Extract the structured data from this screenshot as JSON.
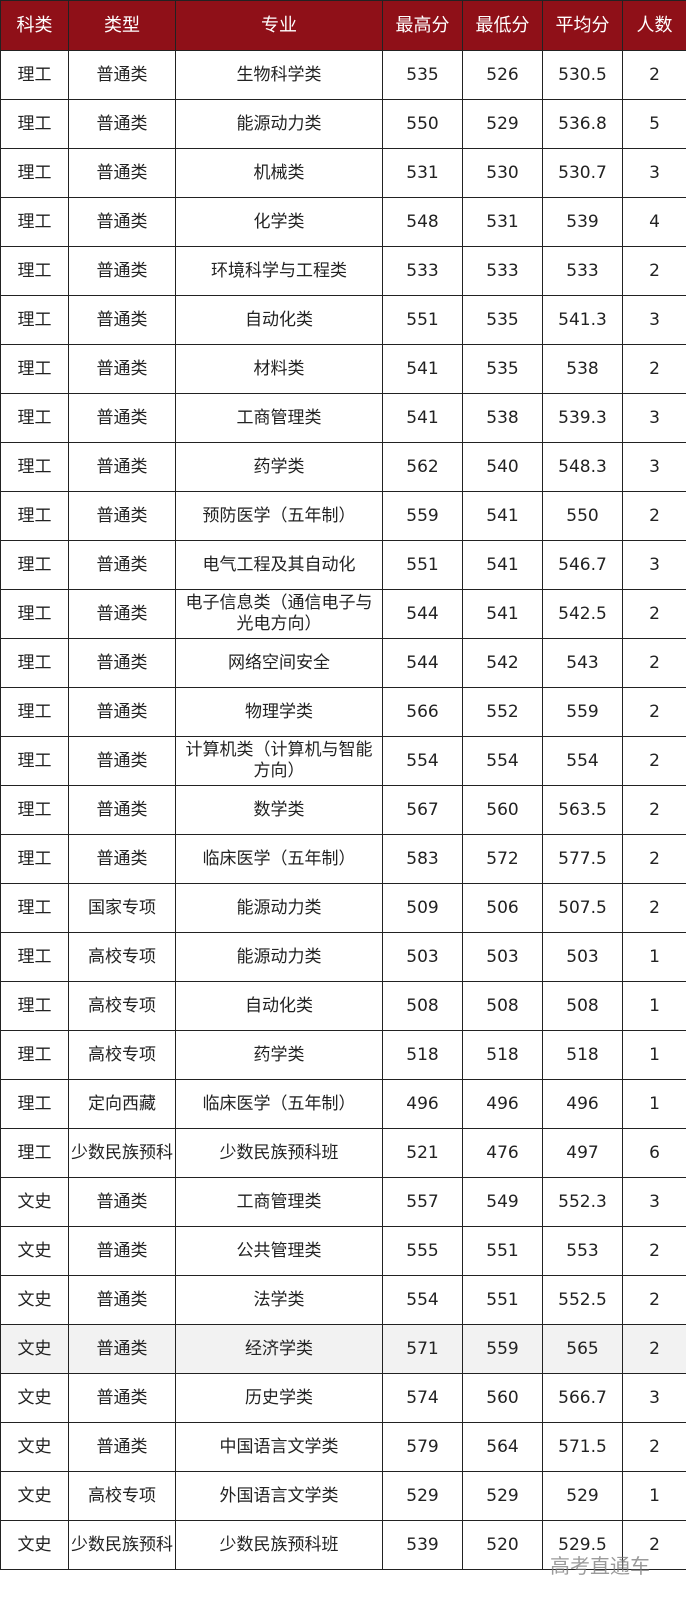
{
  "headers": [
    "科类",
    "类型",
    "专业",
    "最高分",
    "最低分",
    "平均分",
    "人数"
  ],
  "highlighted_row": 26,
  "header_color": "#8f1018",
  "rows": [
    [
      "理工",
      "普通类",
      "生物科学类",
      "535",
      "526",
      "530.5",
      "2"
    ],
    [
      "理工",
      "普通类",
      "能源动力类",
      "550",
      "529",
      "536.8",
      "5"
    ],
    [
      "理工",
      "普通类",
      "机械类",
      "531",
      "530",
      "530.7",
      "3"
    ],
    [
      "理工",
      "普通类",
      "化学类",
      "548",
      "531",
      "539",
      "4"
    ],
    [
      "理工",
      "普通类",
      "环境科学与工程类",
      "533",
      "533",
      "533",
      "2"
    ],
    [
      "理工",
      "普通类",
      "自动化类",
      "551",
      "535",
      "541.3",
      "3"
    ],
    [
      "理工",
      "普通类",
      "材料类",
      "541",
      "535",
      "538",
      "2"
    ],
    [
      "理工",
      "普通类",
      "工商管理类",
      "541",
      "538",
      "539.3",
      "3"
    ],
    [
      "理工",
      "普通类",
      "药学类",
      "562",
      "540",
      "548.3",
      "3"
    ],
    [
      "理工",
      "普通类",
      "预防医学（五年制）",
      "559",
      "541",
      "550",
      "2"
    ],
    [
      "理工",
      "普通类",
      "电气工程及其自动化",
      "551",
      "541",
      "546.7",
      "3"
    ],
    [
      "理工",
      "普通类",
      "电子信息类（通信电子与光电方向）",
      "544",
      "541",
      "542.5",
      "2"
    ],
    [
      "理工",
      "普通类",
      "网络空间安全",
      "544",
      "542",
      "543",
      "2"
    ],
    [
      "理工",
      "普通类",
      "物理学类",
      "566",
      "552",
      "559",
      "2"
    ],
    [
      "理工",
      "普通类",
      "计算机类（计算机与智能方向）",
      "554",
      "554",
      "554",
      "2"
    ],
    [
      "理工",
      "普通类",
      "数学类",
      "567",
      "560",
      "563.5",
      "2"
    ],
    [
      "理工",
      "普通类",
      "临床医学（五年制）",
      "583",
      "572",
      "577.5",
      "2"
    ],
    [
      "理工",
      "国家专项",
      "能源动力类",
      "509",
      "506",
      "507.5",
      "2"
    ],
    [
      "理工",
      "高校专项",
      "能源动力类",
      "503",
      "503",
      "503",
      "1"
    ],
    [
      "理工",
      "高校专项",
      "自动化类",
      "508",
      "508",
      "508",
      "1"
    ],
    [
      "理工",
      "高校专项",
      "药学类",
      "518",
      "518",
      "518",
      "1"
    ],
    [
      "理工",
      "定向西藏",
      "临床医学（五年制）",
      "496",
      "496",
      "496",
      "1"
    ],
    [
      "理工",
      "少数民族预科",
      "少数民族预科班",
      "521",
      "476",
      "497",
      "6"
    ],
    [
      "文史",
      "普通类",
      "工商管理类",
      "557",
      "549",
      "552.3",
      "3"
    ],
    [
      "文史",
      "普通类",
      "公共管理类",
      "555",
      "551",
      "553",
      "2"
    ],
    [
      "文史",
      "普通类",
      "法学类",
      "554",
      "551",
      "552.5",
      "2"
    ],
    [
      "文史",
      "普通类",
      "经济学类",
      "571",
      "559",
      "565",
      "2"
    ],
    [
      "文史",
      "普通类",
      "历史学类",
      "574",
      "560",
      "566.7",
      "3"
    ],
    [
      "文史",
      "普通类",
      "中国语言文学类",
      "579",
      "564",
      "571.5",
      "2"
    ],
    [
      "文史",
      "高校专项",
      "外国语言文学类",
      "529",
      "529",
      "529",
      "1"
    ],
    [
      "文史",
      "少数民族预科",
      "少数民族预科班",
      "539",
      "520",
      "529.5",
      "2"
    ]
  ],
  "watermark": "高考直通车"
}
